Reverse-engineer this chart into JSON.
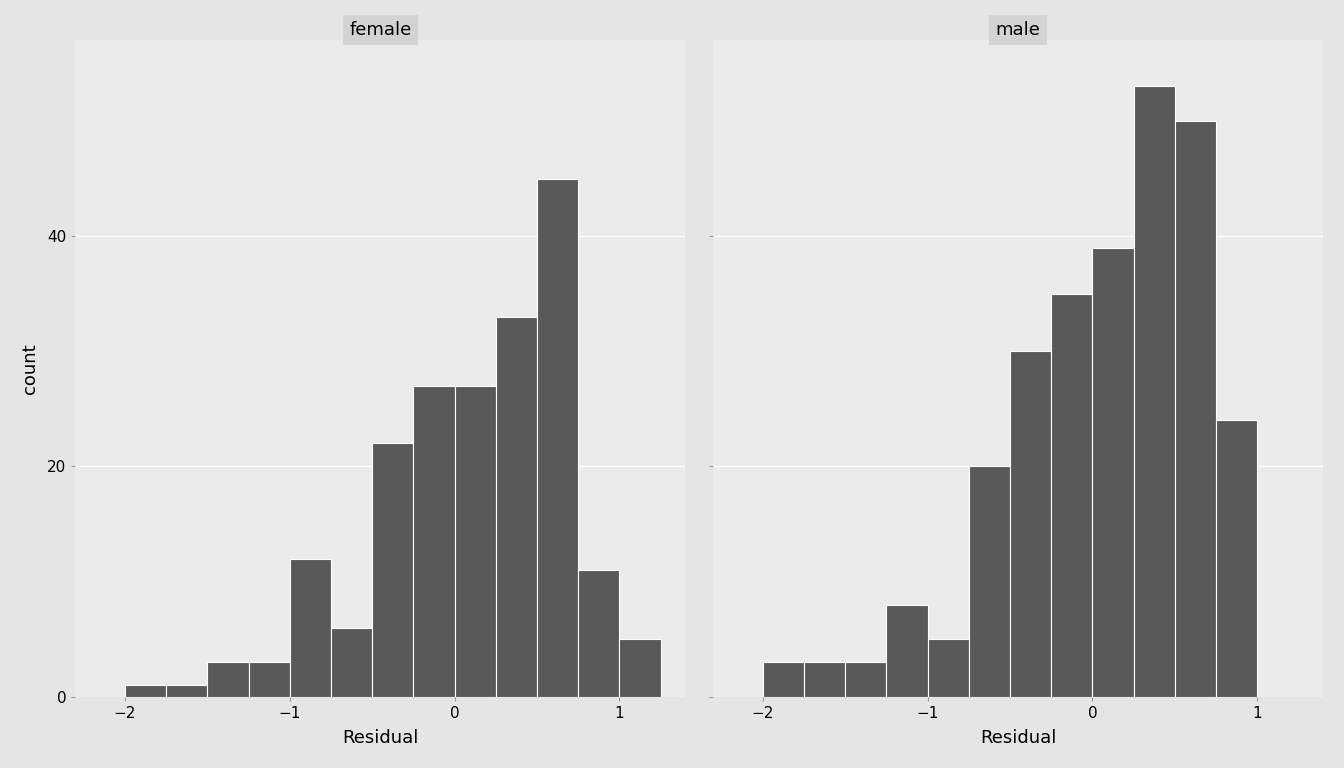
{
  "female_bins": [
    -2.0,
    -1.75,
    -1.5,
    -1.25,
    -1.0,
    -0.75,
    -0.5,
    -0.25,
    0.0,
    0.25,
    0.5,
    0.75,
    1.0,
    1.25
  ],
  "female_counts": [
    1,
    1,
    3,
    3,
    12,
    6,
    22,
    27,
    27,
    33,
    45,
    11,
    5
  ],
  "male_bins": [
    -2.0,
    -1.75,
    -1.5,
    -1.25,
    -1.0,
    -0.75,
    -0.5,
    -0.25,
    0.0,
    0.25,
    0.5,
    0.75,
    1.0,
    1.25
  ],
  "male_counts": [
    3,
    3,
    3,
    8,
    5,
    20,
    30,
    35,
    39,
    53,
    50,
    24,
    0
  ],
  "bar_color": "#595959",
  "bar_edge_color": "#ffffff",
  "bar_linewidth": 0.8,
  "panel_bg_color": "#ebebeb",
  "outer_bg_color": "#e5e5e5",
  "strip_bg_color": "#d3d3d3",
  "strip_text_color": "#000000",
  "strip_fontsize": 13,
  "ylabel": "count",
  "xlabel": "Residual",
  "ylabel_fontsize": 13,
  "xlabel_fontsize": 13,
  "tick_fontsize": 11,
  "ylim": [
    0,
    57
  ],
  "yticks": [
    0,
    20,
    40
  ],
  "xticks": [
    -2,
    -1,
    0,
    1
  ],
  "grid_color": "#ffffff",
  "grid_linewidth": 1.0,
  "panel_labels": [
    "female",
    "male"
  ]
}
